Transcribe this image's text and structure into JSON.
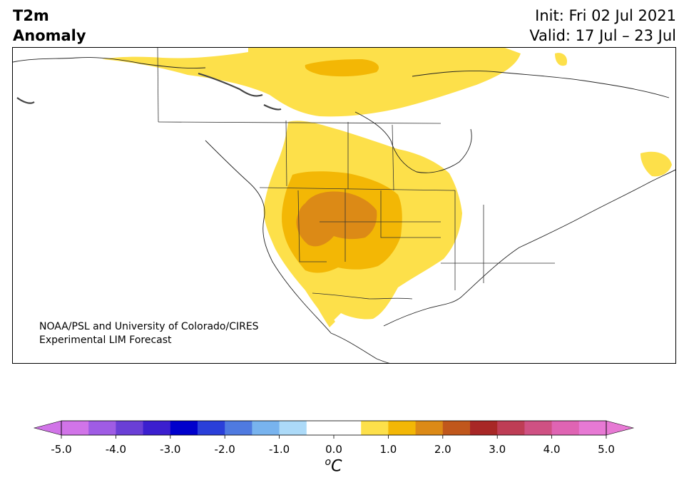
{
  "title": {
    "line1": "T2m",
    "line2": "Anomaly"
  },
  "dates": {
    "init": "Init: Fri 02 Jul 2021",
    "valid": "Valid: 17 Jul – 23 Jul"
  },
  "credit": {
    "line1": "NOAA/PSL and University of Colorado/CIRES",
    "line2": "Experimental LIM Forecast"
  },
  "colorbar": {
    "unit_symbol": "o",
    "unit_letter": "C",
    "ticks": [
      "-5.0",
      "-4.0",
      "-3.0",
      "-2.0",
      "-1.0",
      "0.0",
      "1.0",
      "2.0",
      "3.0",
      "4.0",
      "5.0"
    ],
    "colors": [
      "#d174e8",
      "#9f5ce4",
      "#6a3fd6",
      "#3b1fcf",
      "#0000cc",
      "#2a3fd9",
      "#4f7ae0",
      "#78b3ee",
      "#acdaf8",
      "#ffffff",
      "#ffffff",
      "#fde04a",
      "#f3b705",
      "#dc8a16",
      "#c0571c",
      "#a82726",
      "#be3d55",
      "#cf5183",
      "#df64b3",
      "#e779d4"
    ],
    "under_color": "#d174e8",
    "over_color": "#e779d4"
  },
  "map_fills": {
    "level_0_5": "#fde04a",
    "level_1_0": "#f3b705",
    "level_1_5": "#dc8a16"
  }
}
